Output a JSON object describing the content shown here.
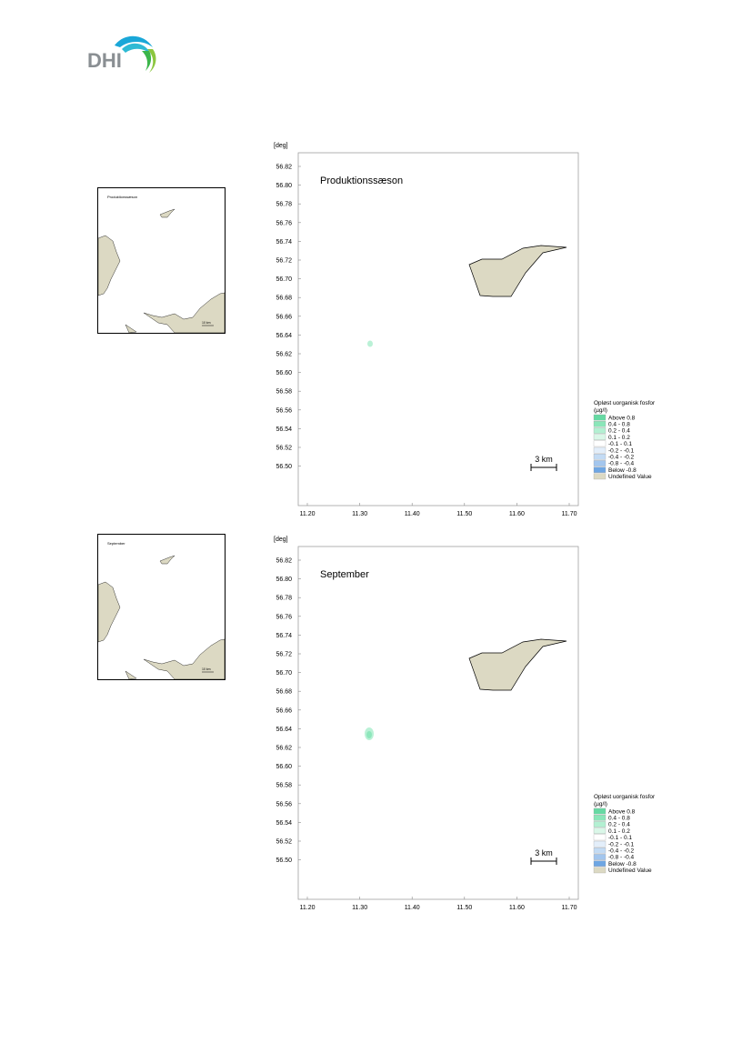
{
  "logo": {
    "text": "DHI"
  },
  "legend": {
    "title_line1": "Opløst uorganisk fosfor",
    "title_line2": "(µg/l)",
    "items": [
      {
        "label": "Above  0.8",
        "color": "#66d9a3"
      },
      {
        "label": "0.4 -  0.8",
        "color": "#8ae6b9"
      },
      {
        "label": "0.2 -  0.4",
        "color": "#b3f0d2"
      },
      {
        "label": "0.1 -  0.2",
        "color": "#daf7e8"
      },
      {
        "label": "-0.1 -  0.1",
        "color": "#ffffff"
      },
      {
        "label": "-0.2 - -0.1",
        "color": "#e3eefa"
      },
      {
        "label": "-0.4 - -0.2",
        "color": "#c3dbf4"
      },
      {
        "label": "-0.8 - -0.4",
        "color": "#a3c6ee"
      },
      {
        "label": "Below -0.8",
        "color": "#6ea6e3"
      },
      {
        "label": "Undefined Value",
        "color": "#dcd9c3"
      }
    ]
  },
  "axis": {
    "y_unit": "[deg]",
    "x_unit": "[deg]",
    "y_ticks": [
      "56.82",
      "56.80",
      "56.78",
      "56.76",
      "56.74",
      "56.72",
      "56.70",
      "56.68",
      "56.66",
      "56.64",
      "56.62",
      "56.60",
      "56.58",
      "56.56",
      "56.54",
      "56.52",
      "56.50"
    ],
    "x_ticks": [
      "11.20",
      "11.30",
      "11.40",
      "11.50",
      "11.60",
      "11.70"
    ]
  },
  "scale_bar": {
    "label": "3 km"
  },
  "overview_scale": "10 km",
  "panels": [
    {
      "title": "Produktionssæson",
      "overview_title": "Produktionssæson"
    },
    {
      "title": "September",
      "overview_title": "September"
    }
  ],
  "colors": {
    "land": "#dcd9c3",
    "border": "#000000",
    "plume": "#8ae6b9"
  }
}
